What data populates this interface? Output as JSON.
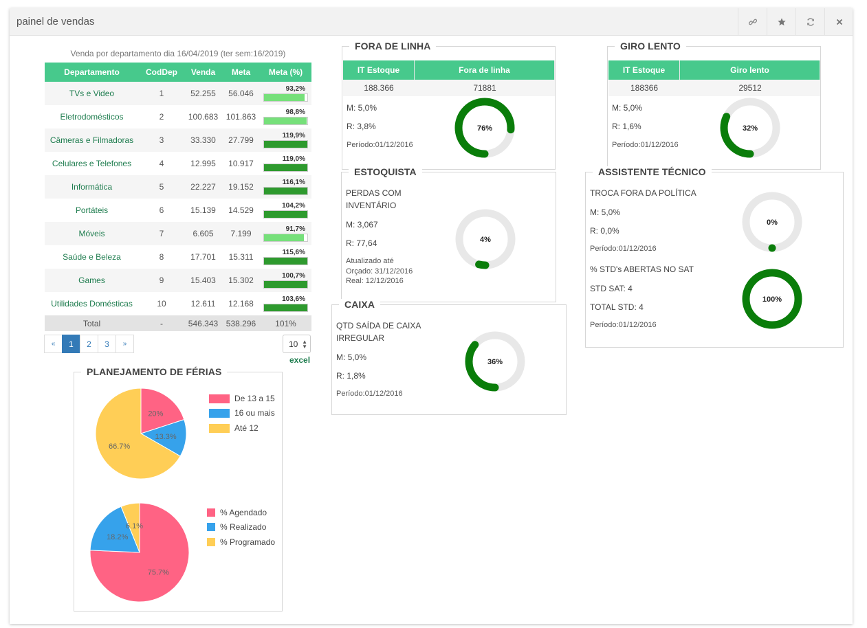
{
  "window": {
    "title": "painel de vendas"
  },
  "toolbar": {
    "link_icon": "link-icon",
    "star_icon": "star-icon",
    "refresh_icon": "refresh-icon",
    "close_icon": "close-icon"
  },
  "sales": {
    "caption": "Venda por departamento dia 16/04/2019 (ter sem:16/2019)",
    "headers": [
      "Departamento",
      "CodDep",
      "Venda",
      "Meta",
      "Meta (%)"
    ],
    "rows": [
      {
        "dep": "TVs e Video",
        "cod": "1",
        "venda": "52.255",
        "meta": "56.046",
        "pct": "93,2%",
        "fill": 0.932
      },
      {
        "dep": "Eletrodomésticos",
        "cod": "2",
        "venda": "100.683",
        "meta": "101.863",
        "pct": "98,8%",
        "fill": 0.988
      },
      {
        "dep": "Câmeras e Filmadoras",
        "cod": "3",
        "venda": "33.330",
        "meta": "27.799",
        "pct": "119,9%",
        "fill": 1.0
      },
      {
        "dep": "Celulares e Telefones",
        "cod": "4",
        "venda": "12.995",
        "meta": "10.917",
        "pct": "119,0%",
        "fill": 1.0
      },
      {
        "dep": "Informática",
        "cod": "5",
        "venda": "22.227",
        "meta": "19.152",
        "pct": "116,1%",
        "fill": 1.0
      },
      {
        "dep": "Portáteis",
        "cod": "6",
        "venda": "15.139",
        "meta": "14.529",
        "pct": "104,2%",
        "fill": 1.0
      },
      {
        "dep": "Móveis",
        "cod": "7",
        "venda": "6.605",
        "meta": "7.199",
        "pct": "91,7%",
        "fill": 0.917
      },
      {
        "dep": "Saúde e Beleza",
        "cod": "8",
        "venda": "17.701",
        "meta": "15.311",
        "pct": "115,6%",
        "fill": 1.0
      },
      {
        "dep": "Games",
        "cod": "9",
        "venda": "15.403",
        "meta": "15.302",
        "pct": "100,7%",
        "fill": 1.0
      },
      {
        "dep": "Utilidades Domésticas",
        "cod": "10",
        "venda": "12.611",
        "meta": "12.168",
        "pct": "103,6%",
        "fill": 1.0
      }
    ],
    "total": {
      "label": "Total",
      "cod": "-",
      "venda": "546.343",
      "meta": "538.296",
      "pct": "101%"
    },
    "colors": {
      "under": "#76e07a",
      "over": "#2e9a2e",
      "header": "#47c98c"
    }
  },
  "pager": {
    "prev": "«",
    "pages": [
      "1",
      "2",
      "3"
    ],
    "active": "1",
    "next": "»",
    "page_size": "10",
    "excel": "excel"
  },
  "ferias": {
    "title": "PLANEJAMENTO DE FÉRIAS",
    "pie1": {
      "legend": [
        "De 13 a 15",
        "16 ou mais",
        "Até 12"
      ],
      "labels": [
        "20%",
        "13.3%",
        "66.7%"
      ],
      "values": [
        20,
        13.3,
        66.7
      ],
      "colors": [
        "#ff6384",
        "#36a2eb",
        "#ffce56"
      ]
    },
    "pie2": {
      "legend": [
        "% Agendado",
        "% Realizado",
        "% Programado"
      ],
      "labels": [
        "75.7%",
        "18.2%",
        "6.1%"
      ],
      "values": [
        75.7,
        18.2,
        6.1
      ],
      "colors": [
        "#ff6384",
        "#36a2eb",
        "#ffce56"
      ]
    }
  },
  "fora_linha": {
    "title": "FORA DE LINHA",
    "headers": [
      "IT Estoque",
      "Fora de linha"
    ],
    "values": [
      "188.366",
      "71881"
    ],
    "m": "M: 5,0%",
    "r": "R: 3,8%",
    "periodo": "Período:01/12/2016",
    "gauge": {
      "label": "76%",
      "value": 0.76
    }
  },
  "giro_lento": {
    "title": "GIRO LENTO",
    "headers": [
      "IT Estoque",
      "Giro lento"
    ],
    "values": [
      "188366",
      "29512"
    ],
    "m": "M: 5,0%",
    "r": "R: 1,6%",
    "periodo": "Período:01/12/2016",
    "gauge": {
      "label": "32%",
      "value": 0.32
    }
  },
  "estoquista": {
    "title": "ESTOQUISTA",
    "line1": "PERDAS COM",
    "line2": "INVENTÁRIO",
    "m": "M: 3,067",
    "r": "R: 77,64",
    "upd1": "Atualizado até",
    "upd2": "Orçado: 31/12/2016",
    "upd3": "Real: 12/12/2016",
    "gauge": {
      "label": "4%",
      "value": 0.04
    }
  },
  "caixa": {
    "title": "CAIXA",
    "line1": "QTD SAÍDA DE CAIXA",
    "line2": "IRREGULAR",
    "m": "M: 5,0%",
    "r": "R: 1,8%",
    "periodo": "Período:01/12/2016",
    "gauge": {
      "label": "36%",
      "value": 0.36
    }
  },
  "assistente": {
    "title": "ASSISTENTE TÉCNICO",
    "a": {
      "line": "TROCA FORA DA POLÍTICA",
      "m": "M: 5,0%",
      "r": "R: 0,0%",
      "periodo": "Período:01/12/2016",
      "gauge": {
        "label": "0%",
        "value": 0
      }
    },
    "b": {
      "line": "% STD's ABERTAS NO SAT",
      "m": "STD SAT: 4",
      "r": "TOTAL STD: 4",
      "periodo": "Período:01/12/2016",
      "gauge": {
        "label": "100%",
        "value": 1
      }
    }
  },
  "gauge_colors": {
    "fill": "#0a7d0a",
    "track": "#e8e8e8"
  }
}
